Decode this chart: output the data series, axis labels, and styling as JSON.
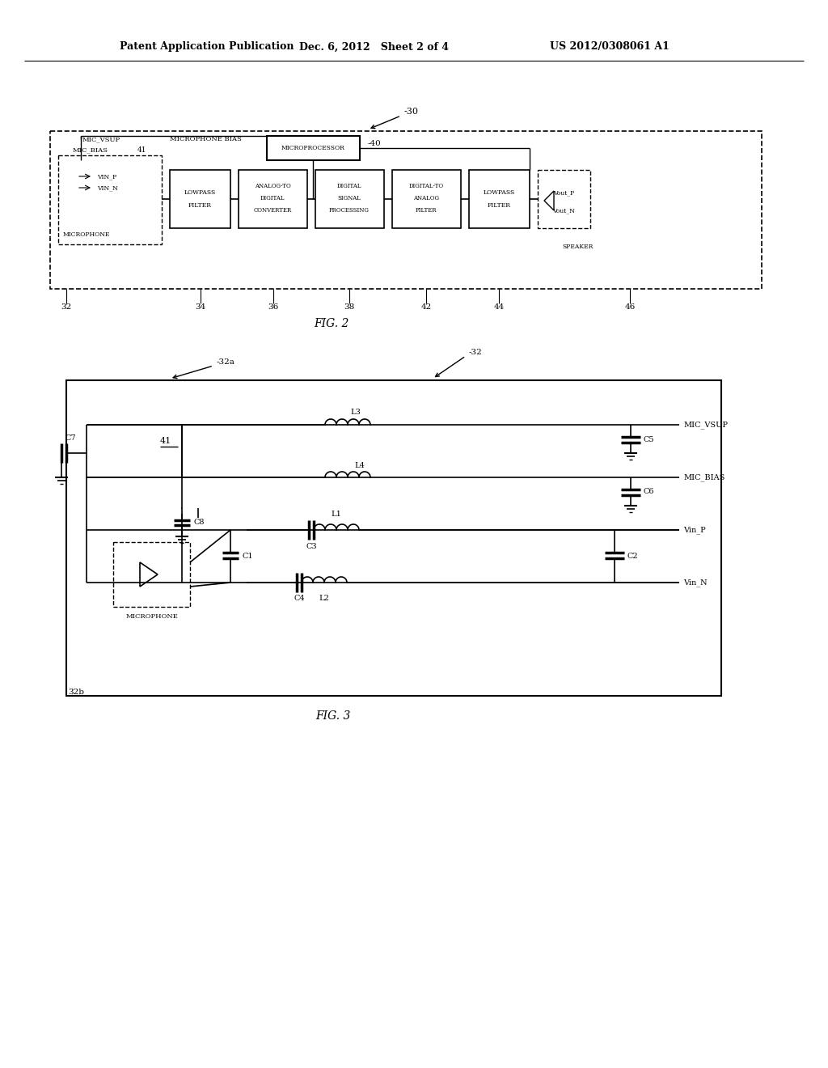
{
  "header_left": "Patent Application Publication",
  "header_mid": "Dec. 6, 2012   Sheet 2 of 4",
  "header_right": "US 2012/0308061 A1",
  "bg_color": "#ffffff",
  "text_color": "#000000"
}
